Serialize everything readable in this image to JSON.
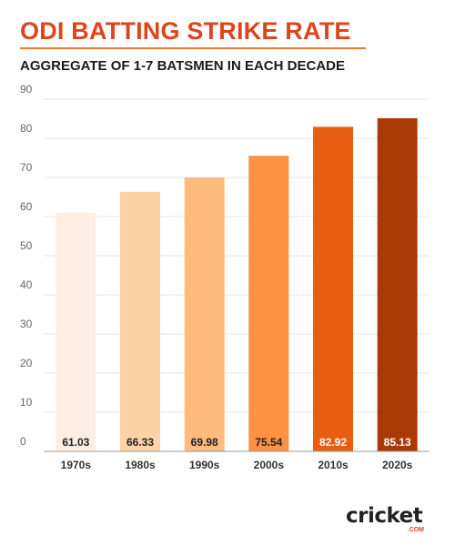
{
  "header": {
    "title": "ODI BATTING STRIKE RATE",
    "subtitle": "AGGREGATE OF 1-7 BATSMEN IN EACH DECADE"
  },
  "logo": {
    "word": "cricket",
    "suffix": ".COM"
  },
  "colors": {
    "accent": "#e0441b",
    "rule": "#f07a2b",
    "grid": "#e6e6e6",
    "axis_text": "#666666",
    "dark_label": "#222222",
    "light_label": "#ffffff",
    "bars": [
      "#fdeee3",
      "#fcd3a6",
      "#fdbb7d",
      "#fb9244",
      "#e85d11",
      "#a93a05"
    ]
  },
  "chart_data": {
    "type": "bar",
    "categories": [
      "1970s",
      "1980s",
      "1990s",
      "2000s",
      "2010s",
      "2020s"
    ],
    "values": [
      61.03,
      66.33,
      69.98,
      75.54,
      82.92,
      85.13
    ],
    "data_labels": [
      "61.03",
      "66.33",
      "69.98",
      "75.54",
      "82.92",
      "85.13"
    ],
    "ylim": [
      0,
      90
    ],
    "yticks": [
      0,
      10,
      20,
      30,
      40,
      50,
      60,
      70,
      80,
      90
    ],
    "grid": true,
    "xlabel": "",
    "ylabel": ""
  }
}
